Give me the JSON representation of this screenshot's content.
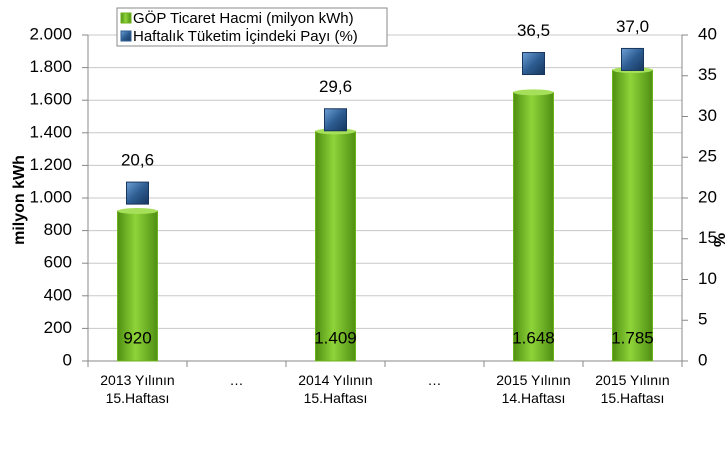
{
  "chart_data": {
    "type": "bar",
    "ylabel": "milyon kWh",
    "y2label": "%",
    "categories": [
      "2013 Yılının 15.Haftası",
      "…",
      "2014 Yılının 15.Haftası",
      "…",
      "2015 Yılının 14.Haftası",
      "2015 Yılının 15.Haftası"
    ],
    "series": [
      {
        "name": "GÖP Ticaret Hacmi (milyon kWh)",
        "type": "bar",
        "color": "#6db31c",
        "values": [
          920,
          null,
          1409,
          null,
          1648,
          1785
        ],
        "value_labels": [
          "920",
          null,
          "1.409",
          null,
          "1.648",
          "1.785"
        ]
      },
      {
        "name": "Haftalık Tüketim İçindeki Payı (%)",
        "type": "scatter",
        "axis": "y2",
        "color": "#2d5d92",
        "values": [
          20.6,
          null,
          29.6,
          null,
          36.5,
          37.0
        ],
        "value_labels": [
          "20,6",
          null,
          "29,6",
          null,
          "36,5",
          "37,0"
        ]
      }
    ],
    "ylim": [
      0,
      2000
    ],
    "yticks": [
      0,
      200,
      400,
      600,
      800,
      {
        "value": 1000,
        "label": "1.000"
      },
      {
        "value": 1200,
        "label": "1.200"
      },
      {
        "value": 1400,
        "label": "1.400"
      },
      {
        "value": 1600,
        "label": "1.600"
      },
      {
        "value": 1800,
        "label": "1.800"
      },
      {
        "value": 2000,
        "label": "2.000"
      }
    ],
    "y2lim": [
      0,
      40
    ],
    "y2ticks": [
      0,
      5,
      10,
      15,
      20,
      25,
      30,
      35,
      40
    ],
    "grid": true
  }
}
